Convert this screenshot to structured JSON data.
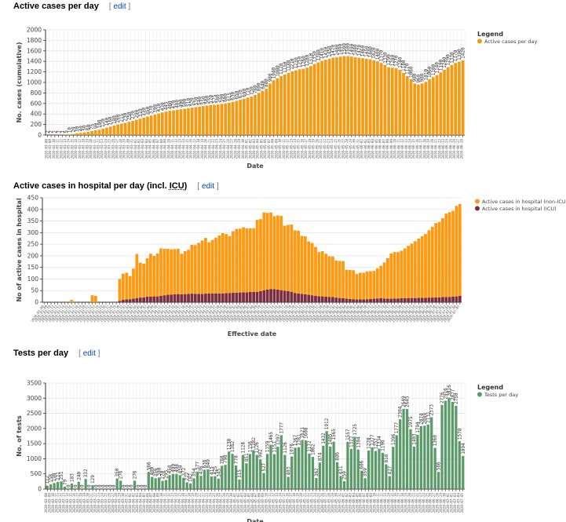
{
  "sections": [
    {
      "title": "Active cases per day",
      "edit_label": "edit"
    },
    {
      "title_pre": "Active cases in hospital per day (incl. ",
      "title_abbr": "ICU",
      "title_post": ")",
      "edit_label": "edit"
    },
    {
      "title": "Tests per day",
      "edit_label": "edit"
    }
  ],
  "chart_data": [
    {
      "type": "bar",
      "title": "Active cases per day",
      "xlabel": "Date",
      "ylabel": "No. cases (cumulative)",
      "ylim": [
        0,
        2000
      ],
      "yticks": [
        0,
        200,
        400,
        600,
        800,
        1000,
        1200,
        1400,
        1600,
        1800,
        2000
      ],
      "grid": true,
      "legend_title": "Legend",
      "legend_position": "top-right",
      "x_start_date": "2020-03-08",
      "series": [
        {
          "name": "Active cases per day",
          "color": "#f39c12",
          "values": [
            2,
            2,
            2,
            3,
            3,
            5,
            10,
            20,
            30,
            40,
            50,
            60,
            75,
            90,
            100,
            120,
            140,
            160,
            180,
            200,
            215,
            230,
            250,
            270,
            290,
            310,
            330,
            350,
            370,
            390,
            410,
            430,
            445,
            460,
            470,
            480,
            490,
            500,
            510,
            520,
            530,
            540,
            550,
            560,
            570,
            575,
            580,
            590,
            600,
            615,
            630,
            650,
            670,
            690,
            710,
            730,
            760,
            800,
            840,
            880,
            980,
            1040,
            1080,
            1120,
            1150,
            1180,
            1210,
            1230,
            1250,
            1260,
            1280,
            1310,
            1350,
            1380,
            1410,
            1430,
            1450,
            1470,
            1480,
            1490,
            1500,
            1500,
            1490,
            1480,
            1470,
            1460,
            1450,
            1440,
            1420,
            1400,
            1370,
            1330,
            1290,
            1280,
            1270,
            1240,
            1180,
            1120,
            1060,
            980,
            960,
            980,
            1010,
            1060,
            1100,
            1140,
            1190,
            1240,
            1290,
            1330,
            1370,
            1390,
            1420
          ]
        }
      ]
    },
    {
      "type": "bar",
      "stacked": true,
      "title": "Active cases in hospital per day (incl. ICU)",
      "xlabel": "Effective date",
      "ylabel": "No of active cases in hospital",
      "ylim": [
        0,
        450
      ],
      "yticks": [
        0,
        50,
        100,
        150,
        200,
        250,
        300,
        350,
        400,
        450
      ],
      "grid": true,
      "legend_position": "top-right",
      "series": [
        {
          "name": "Active cases in hospital (non-ICU)",
          "color": "#ff9912",
          "values": [
            0,
            0,
            0,
            0,
            0,
            0,
            0,
            0,
            10,
            0,
            0,
            0,
            0,
            0,
            30,
            27,
            0,
            0,
            0,
            0,
            0,
            0,
            95,
            113,
            115,
            100,
            130,
            190,
            150,
            145,
            165,
            185,
            175,
            185,
            205,
            200,
            198,
            195,
            195,
            195,
            175,
            185,
            190,
            210,
            210,
            220,
            230,
            240,
            220,
            230,
            240,
            250,
            260,
            255,
            245,
            265,
            275,
            275,
            280,
            275,
            275,
            275,
            310,
            310,
            335,
            330,
            330,
            315,
            320,
            320,
            280,
            285,
            290,
            270,
            270,
            250,
            250,
            230,
            225,
            210,
            190,
            195,
            185,
            175,
            175,
            160,
            160,
            160,
            125,
            125,
            125,
            110,
            115,
            115,
            120,
            120,
            120,
            130,
            140,
            155,
            175,
            195,
            200,
            200,
            205,
            215,
            225,
            235,
            245,
            255,
            265,
            275,
            290,
            305,
            320,
            325,
            340,
            360,
            365,
            370,
            390,
            395
          ]
        },
        {
          "name": "Active cases in hospital (ICU)",
          "color": "#7b2d3f",
          "values": [
            0,
            0,
            0,
            0,
            0,
            0,
            0,
            0,
            0,
            0,
            0,
            0,
            0,
            0,
            0,
            0,
            0,
            0,
            0,
            0,
            0,
            0,
            5,
            10,
            12,
            13,
            15,
            18,
            20,
            21,
            24,
            24,
            25,
            25,
            27,
            30,
            32,
            33,
            34,
            35,
            34,
            35,
            36,
            37,
            36,
            36,
            36,
            37,
            38,
            38,
            38,
            38,
            38,
            39,
            40,
            41,
            41,
            42,
            43,
            43,
            44,
            44,
            45,
            48,
            52,
            55,
            57,
            56,
            54,
            52,
            50,
            48,
            45,
            40,
            38,
            36,
            34,
            32,
            30,
            28,
            26,
            25,
            24,
            23,
            22,
            20,
            18,
            17,
            15,
            14,
            13,
            12,
            12,
            12,
            13,
            14,
            15,
            16,
            17,
            16,
            15,
            15,
            16,
            16,
            17,
            17,
            18,
            18,
            18,
            19,
            19,
            19,
            20,
            20,
            21,
            21,
            22,
            22,
            23,
            24,
            25,
            28
          ]
        }
      ]
    },
    {
      "type": "bar",
      "title": "Tests per day",
      "xlabel": "Date",
      "ylabel": "No. of tests",
      "ylim": [
        0,
        3500
      ],
      "yticks": [
        0,
        500,
        1000,
        1500,
        2000,
        2500,
        3000,
        3500
      ],
      "grid": true,
      "legend_title": "Legend",
      "legend_position": "top-right",
      "x_start_date": "2020-03-08",
      "series": [
        {
          "name": "Tests per day",
          "color": "#5a9a68",
          "values": [
            112,
            158,
            198,
            231,
            251,
            79,
            0,
            183,
            0,
            240,
            0,
            332,
            0,
            129,
            0,
            0,
            0,
            0,
            0,
            0,
            350,
            276,
            0,
            0,
            0,
            276,
            0,
            0,
            0,
            566,
            400,
            356,
            380,
            270,
            295,
            458,
            499,
            498,
            458,
            372,
            222,
            182,
            354,
            577,
            436,
            636,
            649,
            415,
            425,
            345,
            768,
            798,
            1238,
            1162,
            778,
            315,
            1128,
            851,
            1156,
            1282,
            1126,
            982,
            527,
            1159,
            1465,
            1151,
            1397,
            1777,
            1126,
            403,
            1076,
            1367,
            1381,
            1621,
            1608,
            1172,
            1062,
            362,
            874,
            1432,
            1912,
            1405,
            1565,
            886,
            431,
            259,
            1557,
            1322,
            1725,
            1304,
            606,
            359,
            1270,
            1377,
            1257,
            1334,
            1196,
            818,
            427,
            1396,
            1777,
            2304,
            2649,
            2645,
            1975,
            1403,
            1794,
            2074,
            2089,
            2131,
            2373,
            1360,
            566,
            2776,
            2916,
            3016,
            2877,
            2750,
            1578,
            1094
          ]
        }
      ]
    }
  ]
}
